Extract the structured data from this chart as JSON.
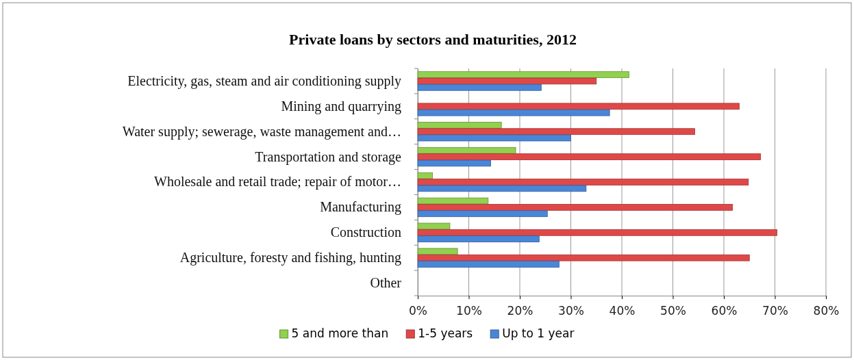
{
  "chart_data": {
    "type": "bar",
    "orientation": "horizontal",
    "title": "Private loans by sectors and maturities, 2012",
    "categories": [
      "Electricity, gas, steam and air conditioning supply",
      "Mining and quarrying",
      "Water supply; sewerage, waste management and…",
      "Transportation and storage",
      "Wholesale and retail trade; repair of motor…",
      "Manufacturing",
      "Construction",
      "Agriculture, foresty and fishing, hunting",
      "Other"
    ],
    "series": [
      {
        "name": "5 and more than",
        "color": "#92d050",
        "values": [
          41.4,
          0,
          16.4,
          19.2,
          2.9,
          13.8,
          6.3,
          7.8,
          null
        ]
      },
      {
        "name": "1-5 years",
        "color": "#e04848",
        "values": [
          35.0,
          63.0,
          54.3,
          67.2,
          64.8,
          61.7,
          70.4,
          65.0,
          null
        ]
      },
      {
        "name": "Up to 1 year",
        "color": "#4a86d8",
        "values": [
          24.2,
          37.6,
          30.0,
          14.3,
          33.0,
          25.4,
          23.8,
          27.7,
          null
        ]
      }
    ],
    "xlim": [
      0,
      80
    ],
    "xticks": [
      {
        "value": 0,
        "label": "0%"
      },
      {
        "value": 10,
        "label": "10%"
      },
      {
        "value": 20,
        "label": "20%"
      },
      {
        "value": 30,
        "label": "30%"
      },
      {
        "value": 40,
        "label": "40%"
      },
      {
        "value": 50,
        "label": "50%"
      },
      {
        "value": 60,
        "label": "60%"
      },
      {
        "value": 70,
        "label": "70%"
      },
      {
        "value": 80,
        "label": "80%"
      }
    ],
    "grid": "x",
    "legend": "bottom"
  }
}
